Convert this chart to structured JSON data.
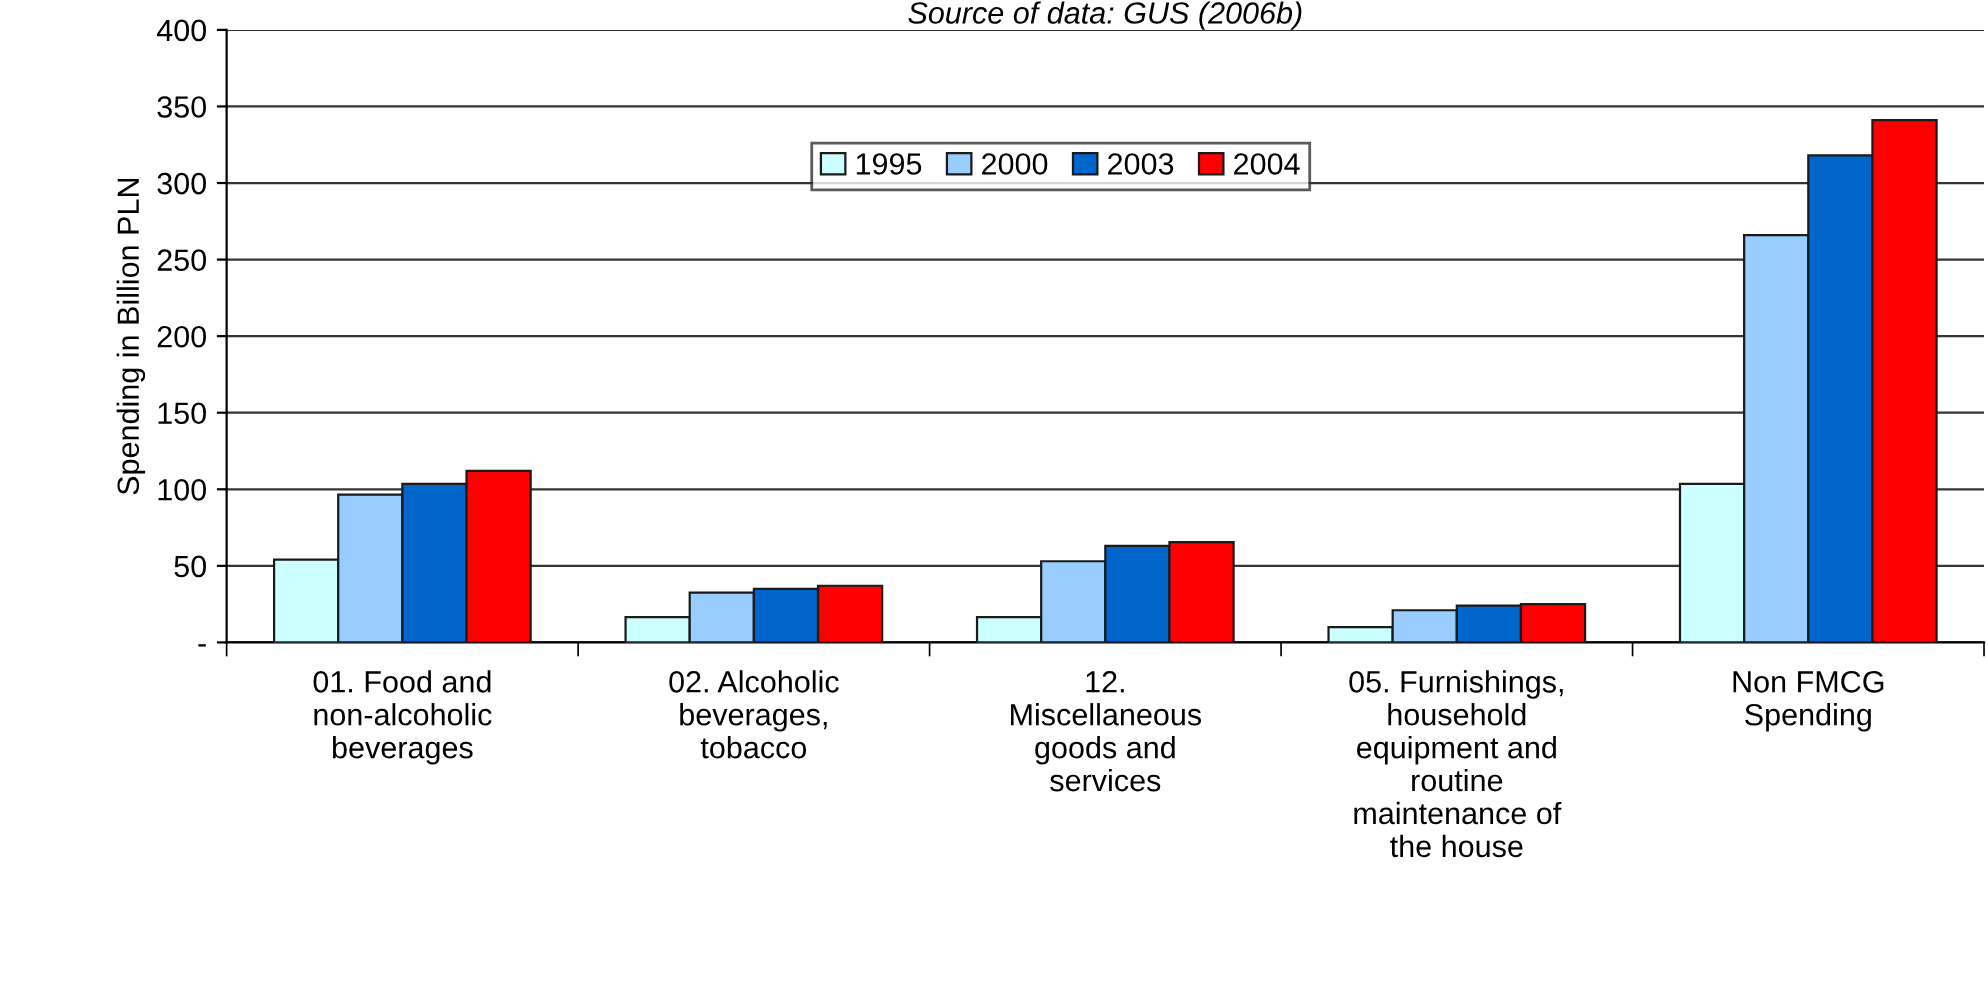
{
  "chart_data": {
    "type": "bar",
    "title": "Source of data: GUS (2006b)",
    "ylabel": "Spending in Billion PLN",
    "categories": [
      "01. Food and\nnon-alcoholic\nbeverages",
      "02. Alcoholic\nbeverages,\ntobacco",
      "12.\nMiscellaneous\ngoods and\nservices",
      "05. Furnishings,\nhousehold\nequipment and\nroutine\nmaintenance of\nthe house",
      "Non FMCG\nSpending"
    ],
    "series": [
      {
        "name": "1995",
        "color": "#ccffff",
        "values": [
          54,
          16.5,
          16.5,
          10,
          103.5
        ]
      },
      {
        "name": "2000",
        "color": "#99ccff",
        "values": [
          96.5,
          32.5,
          53,
          21,
          266
        ]
      },
      {
        "name": "2003",
        "color": "#0066cc",
        "values": [
          103.5,
          35,
          63,
          24,
          318
        ]
      },
      {
        "name": "2004",
        "color": "#ff0000",
        "values": [
          112,
          37,
          65.5,
          25,
          341
        ]
      }
    ],
    "ylim": [
      0,
      400
    ],
    "yticks": [
      {
        "value": 0,
        "label": "-"
      },
      50,
      100,
      150,
      200,
      250,
      300,
      350,
      400
    ],
    "grid": "y",
    "legend": "top right"
  }
}
